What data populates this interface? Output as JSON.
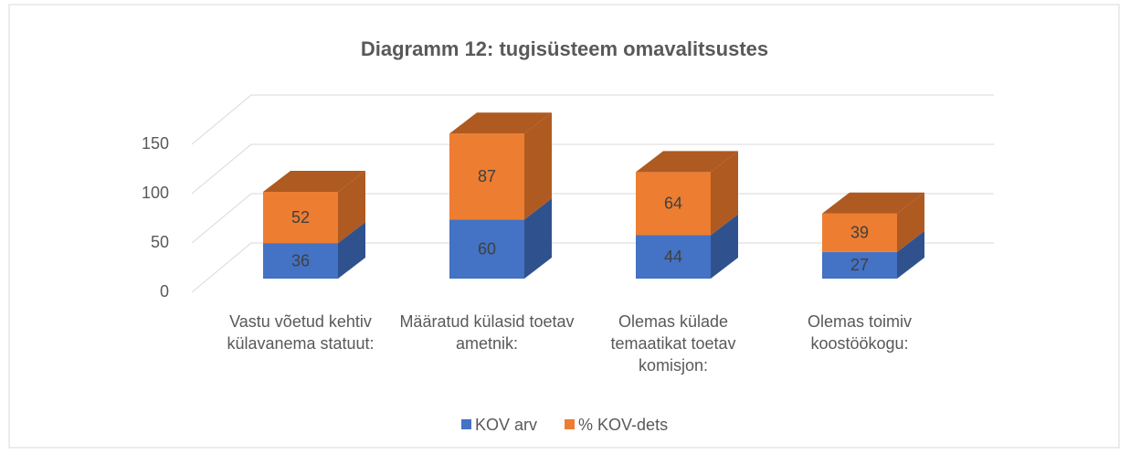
{
  "chart_data": {
    "type": "bar3d_stacked",
    "title": "Diagramm 12: tugisüsteem omavalitsustes",
    "categories": [
      "Vastu võetud kehtiv külavanema statuut:",
      "Määratud külasid toetav ametnik:",
      "Olemas külade temaatikat toetav komisjon:",
      "Olemas toimiv koostöökogu:"
    ],
    "series": [
      {
        "name": "KOV arv",
        "color": "#4472c4",
        "side": "#2f528f",
        "values": [
          36,
          60,
          44,
          27
        ]
      },
      {
        "name": "% KOV-dets",
        "color": "#ed7d31",
        "side": "#ae5a21",
        "values": [
          52,
          87,
          64,
          39
        ]
      }
    ],
    "ylim": [
      0,
      150
    ],
    "yticks": [
      0,
      50,
      100,
      150
    ],
    "grid": true,
    "legend": "bottom"
  }
}
